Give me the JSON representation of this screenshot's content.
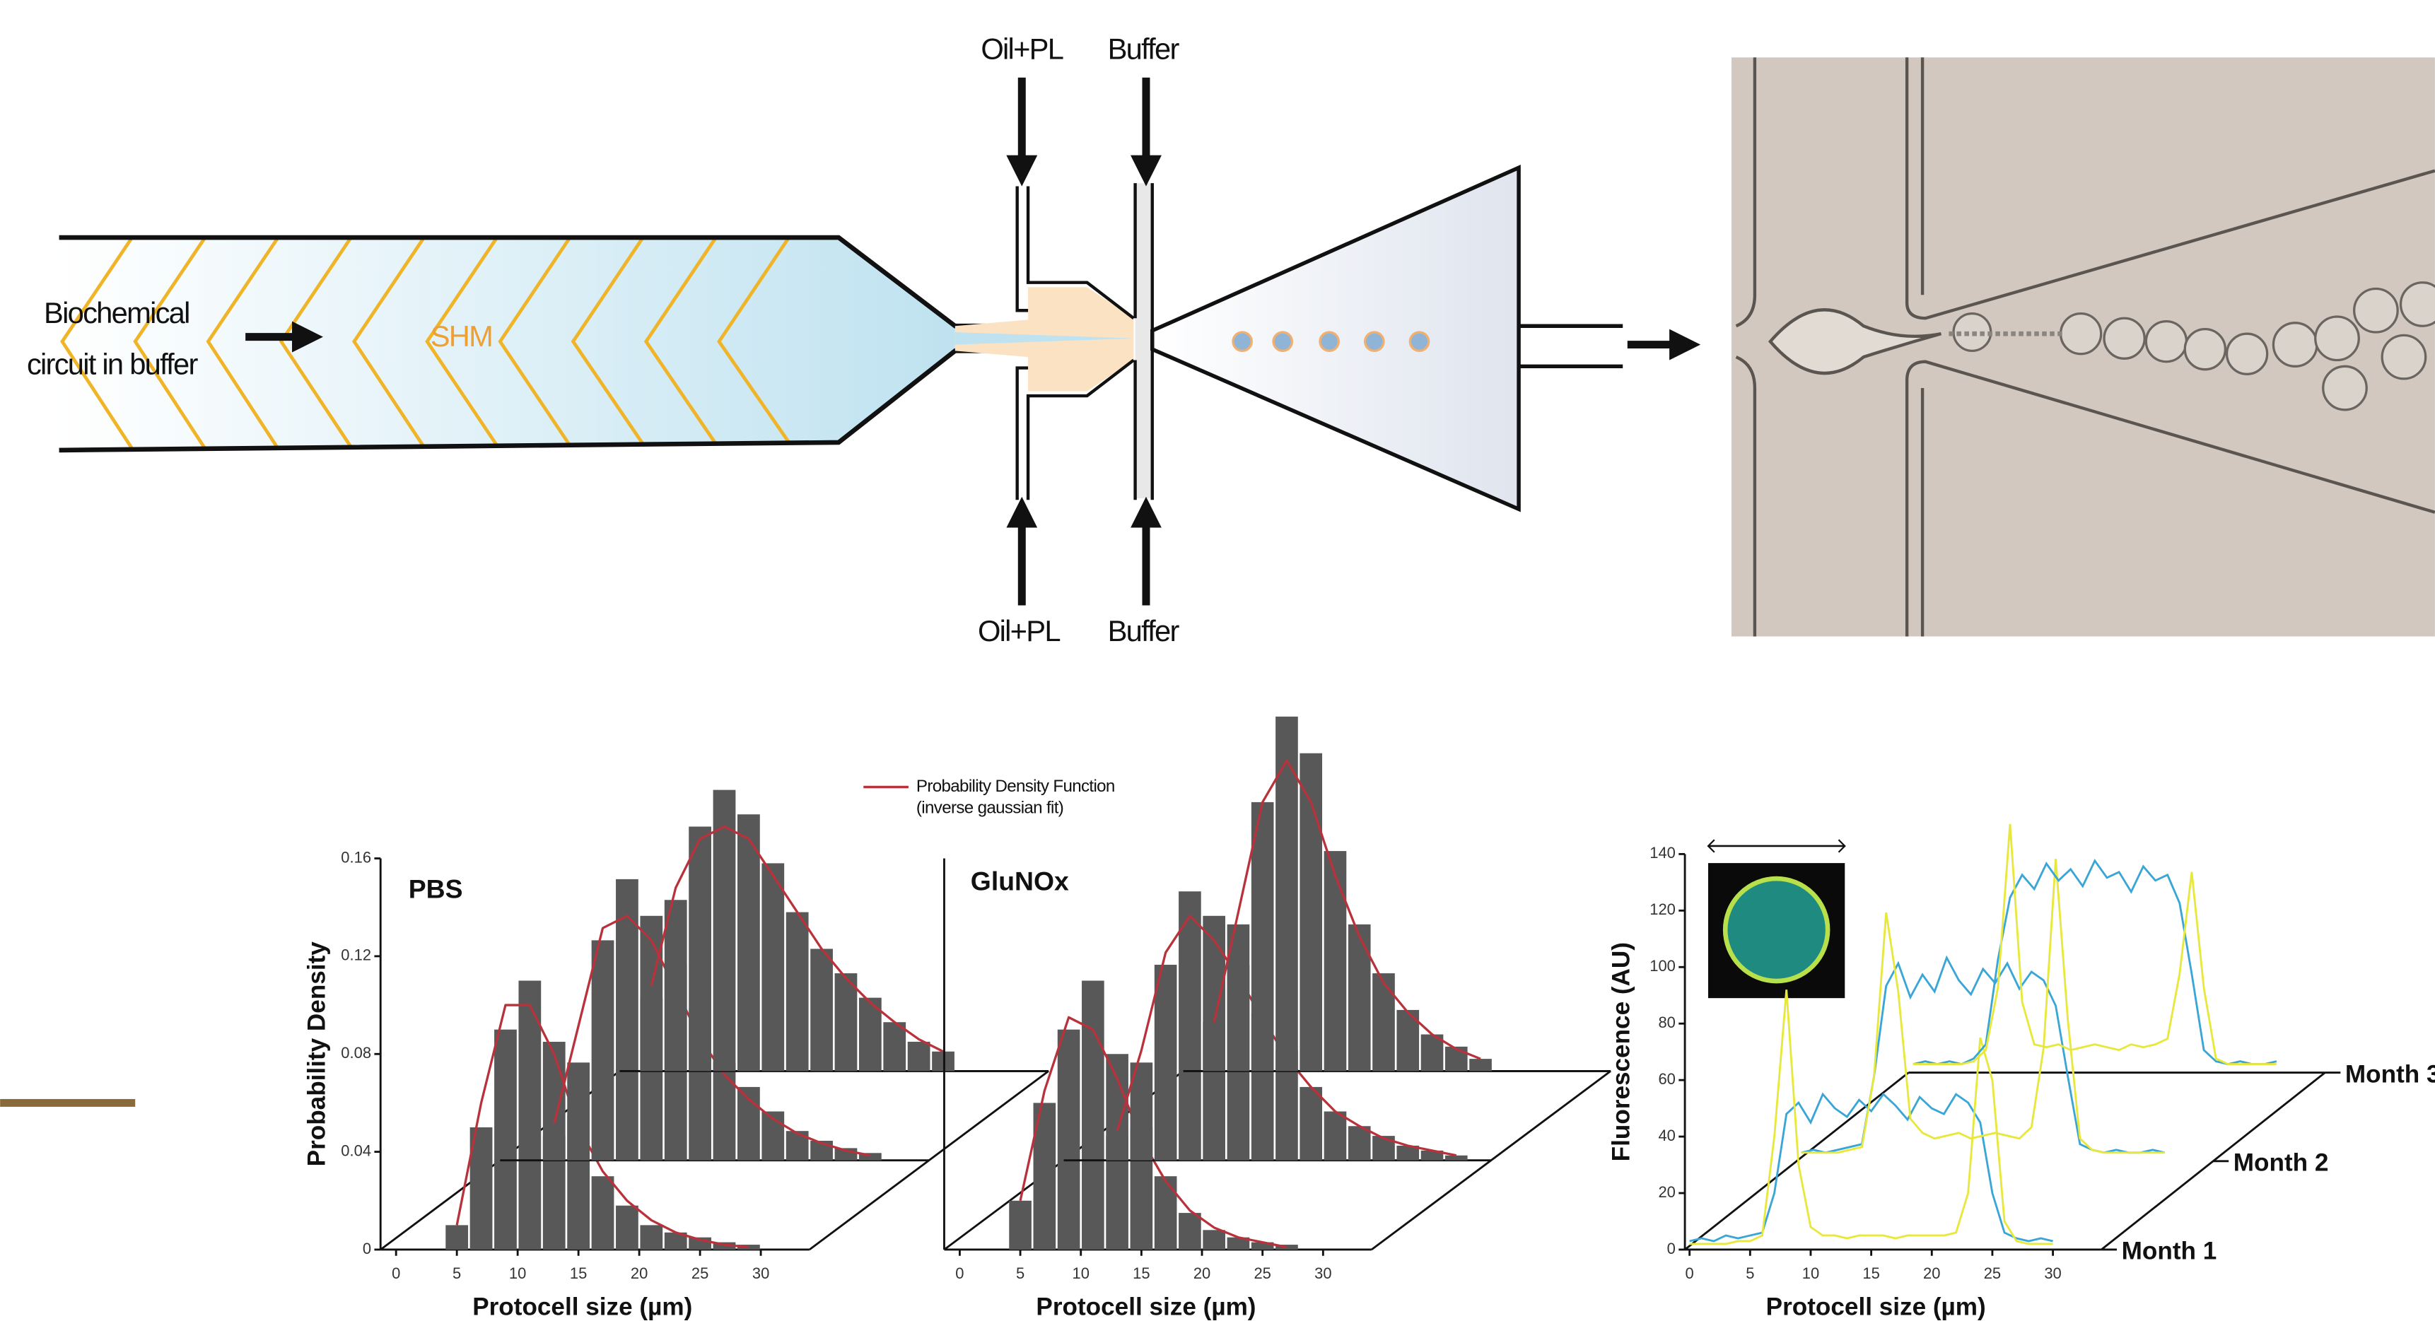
{
  "diagram": {
    "inlets_top": [
      "Oil+PL",
      "Buffer"
    ],
    "inlets_bottom": [
      "Oil+PL",
      "Buffer"
    ],
    "input_label": [
      "Biochemical",
      "circuit in buffer"
    ],
    "mixer_label": "SHM"
  },
  "chart_data": [
    {
      "type": "histogram",
      "label": "PBS",
      "xlabel": "Protocell size (µm)",
      "ylabel": "Probability Density",
      "legend": [
        "Probability Density Function",
        "(inverse gaussian fit)"
      ],
      "legend_color": "#b8323c",
      "color": "#585858",
      "xlim": [
        0,
        34
      ],
      "ylim": [
        0,
        0.16
      ],
      "xticks": [
        0,
        5,
        10,
        15,
        20,
        25,
        30
      ],
      "yticks": [
        0,
        0.04,
        0.08,
        0.12,
        0.16
      ],
      "series": [
        {
          "bins": [
            4,
            6,
            8,
            10,
            12,
            14,
            16,
            18,
            20,
            22,
            24,
            26,
            28,
            30
          ],
          "values": [
            0.01,
            0.05,
            0.09,
            0.11,
            0.085,
            0.055,
            0.03,
            0.018,
            0.01,
            0.007,
            0.005,
            0.003,
            0.002
          ],
          "fit": [
            0.01,
            0.06,
            0.1,
            0.1,
            0.08,
            0.05,
            0.032,
            0.02,
            0.012,
            0.007,
            0.004,
            0.002,
            0.001
          ]
        },
        {
          "bins": [
            12,
            14,
            16,
            18,
            20,
            22,
            24,
            26,
            28,
            30,
            32,
            34,
            36,
            38,
            40
          ],
          "values": [
            0.01,
            0.04,
            0.09,
            0.115,
            0.1,
            0.08,
            0.06,
            0.04,
            0.03,
            0.02,
            0.012,
            0.008,
            0.005,
            0.003
          ],
          "fit": [
            0.015,
            0.055,
            0.095,
            0.1,
            0.09,
            0.07,
            0.05,
            0.035,
            0.025,
            0.017,
            0.011,
            0.007,
            0.004,
            0.002
          ]
        },
        {
          "bins": [
            20,
            22,
            24,
            26,
            28,
            30,
            32,
            34,
            36,
            38,
            40,
            42,
            44,
            46
          ],
          "values": [
            0.03,
            0.07,
            0.1,
            0.115,
            0.105,
            0.085,
            0.065,
            0.05,
            0.04,
            0.03,
            0.02,
            0.012,
            0.008
          ],
          "fit": [
            0.035,
            0.075,
            0.095,
            0.1,
            0.095,
            0.08,
            0.065,
            0.05,
            0.038,
            0.028,
            0.02,
            0.013,
            0.008
          ]
        }
      ]
    },
    {
      "type": "histogram",
      "label": "GluNOx",
      "xlabel": "Protocell size (µm)",
      "color": "#585858",
      "fit_color": "#b8323c",
      "xlim": [
        0,
        34
      ],
      "ylim": [
        0,
        0.16
      ],
      "xticks": [
        0,
        5,
        10,
        15,
        20,
        25,
        30
      ],
      "series": [
        {
          "bins": [
            4,
            6,
            8,
            10,
            12,
            14,
            16,
            18,
            20,
            22,
            24,
            26,
            28
          ],
          "values": [
            0.02,
            0.06,
            0.09,
            0.11,
            0.08,
            0.05,
            0.03,
            0.015,
            0.008,
            0.005,
            0.003,
            0.002
          ],
          "fit": [
            0.02,
            0.065,
            0.095,
            0.09,
            0.07,
            0.045,
            0.028,
            0.016,
            0.009,
            0.005,
            0.003,
            0.001
          ]
        },
        {
          "bins": [
            12,
            14,
            16,
            18,
            20,
            22,
            24,
            26,
            28,
            30,
            32,
            34,
            36,
            38,
            40,
            42
          ],
          "values": [
            0.01,
            0.04,
            0.08,
            0.11,
            0.1,
            0.08,
            0.06,
            0.045,
            0.03,
            0.02,
            0.014,
            0.01,
            0.006,
            0.004,
            0.002
          ],
          "fit": [
            0.012,
            0.045,
            0.085,
            0.1,
            0.09,
            0.075,
            0.058,
            0.042,
            0.03,
            0.02,
            0.014,
            0.009,
            0.006,
            0.004,
            0.002
          ]
        },
        {
          "bins": [
            20,
            22,
            24,
            26,
            28,
            30,
            32,
            34,
            36,
            38,
            40,
            42,
            44
          ],
          "values": [
            0.02,
            0.06,
            0.11,
            0.145,
            0.13,
            0.09,
            0.06,
            0.04,
            0.025,
            0.015,
            0.01,
            0.005
          ],
          "fit": [
            0.02,
            0.065,
            0.11,
            0.127,
            0.11,
            0.08,
            0.055,
            0.036,
            0.024,
            0.015,
            0.009,
            0.005
          ]
        }
      ]
    },
    {
      "type": "line",
      "xlabel": "Protocell size (µm)",
      "ylabel": "Fluorescence (AU)",
      "xlim": [
        0,
        34
      ],
      "ylim": [
        0,
        140
      ],
      "xticks": [
        0,
        5,
        10,
        15,
        20,
        25,
        30
      ],
      "yticks": [
        0,
        20,
        40,
        60,
        80,
        100,
        120,
        140
      ],
      "x": [
        0,
        1,
        2,
        3,
        4,
        5,
        6,
        7,
        8,
        9,
        10,
        11,
        12,
        13,
        14,
        15,
        16,
        17,
        18,
        19,
        20,
        21,
        22,
        23,
        24,
        25,
        26,
        27,
        28,
        29,
        30
      ],
      "series": [
        {
          "name": "Month 1",
          "profiles": [
            {
              "color": "#3aa6d6",
              "values": [
                3,
                4,
                3,
                5,
                4,
                5,
                6,
                20,
                48,
                52,
                45,
                55,
                50,
                47,
                53,
                49,
                55,
                51,
                46,
                54,
                50,
                48,
                55,
                52,
                45,
                20,
                6,
                4,
                3,
                4,
                3
              ]
            },
            {
              "color": "#e8e83c",
              "values": [
                2,
                2,
                2,
                2,
                3,
                3,
                5,
                40,
                92,
                30,
                8,
                5,
                5,
                4,
                5,
                5,
                5,
                4,
                5,
                5,
                5,
                5,
                6,
                20,
                75,
                60,
                10,
                3,
                2,
                2,
                2
              ]
            }
          ]
        },
        {
          "name": "Month 2",
          "profiles": [
            {
              "color": "#3aa6d6",
              "values": [
                3,
                4,
                3,
                4,
                5,
                6,
                30,
                62,
                70,
                58,
                66,
                60,
                72,
                64,
                59,
                68,
                63,
                70,
                61,
                67,
                64,
                55,
                30,
                6,
                4,
                3,
                4,
                3,
                3,
                4,
                3
              ]
            },
            {
              "color": "#e8e83c",
              "values": [
                3,
                3,
                3,
                3,
                4,
                5,
                30,
                88,
                60,
                15,
                10,
                8,
                9,
                10,
                8,
                9,
                10,
                9,
                8,
                12,
                40,
                107,
                50,
                8,
                4,
                3,
                3,
                3,
                3,
                3,
                3
              ]
            }
          ]
        },
        {
          "name": "Month 3",
          "profiles": [
            {
              "color": "#3aa6d6",
              "values": [
                3,
                4,
                3,
                4,
                3,
                5,
                10,
                40,
                62,
                70,
                65,
                74,
                68,
                72,
                66,
                75,
                69,
                71,
                64,
                73,
                68,
                70,
                60,
                35,
                8,
                4,
                3,
                4,
                3,
                3,
                4
              ]
            },
            {
              "color": "#e8e83c",
              "values": [
                3,
                3,
                3,
                3,
                3,
                4,
                8,
                30,
                88,
                25,
                10,
                9,
                10,
                8,
                9,
                10,
                9,
                8,
                10,
                9,
                10,
                12,
                35,
                71,
                30,
                5,
                3,
                3,
                3,
                3,
                3
              ]
            }
          ]
        }
      ]
    }
  ]
}
